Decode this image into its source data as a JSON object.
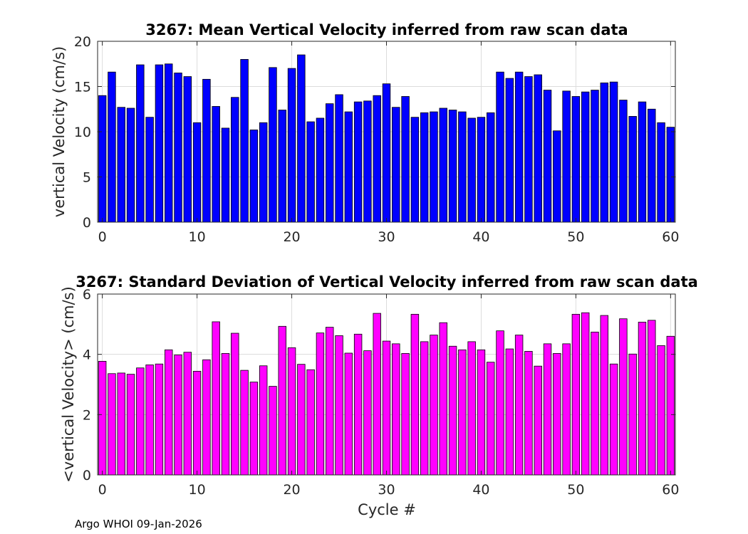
{
  "footer": "Argo WHOI 09-Jan-2026",
  "chart_data": [
    {
      "type": "bar",
      "title": "3267: Mean Vertical Velocity inferred from raw scan data",
      "xlabel": "",
      "ylabel": "vertical Velocity (cm/s)",
      "color": "#0000ff",
      "xlim": [
        -0.5,
        60.5
      ],
      "ylim": [
        0,
        20
      ],
      "xticks": [
        0,
        10,
        20,
        30,
        40,
        50,
        60
      ],
      "yticks": [
        0,
        5,
        10,
        15,
        20
      ],
      "grid": true,
      "x": [
        0,
        1,
        2,
        3,
        4,
        5,
        6,
        7,
        8,
        9,
        10,
        11,
        12,
        13,
        14,
        15,
        16,
        17,
        18,
        19,
        20,
        21,
        22,
        23,
        24,
        25,
        26,
        27,
        28,
        29,
        30,
        31,
        32,
        33,
        34,
        35,
        36,
        37,
        38,
        39,
        40,
        41,
        42,
        43,
        44,
        45,
        46,
        47,
        48,
        49,
        50,
        51,
        52,
        53,
        54,
        55,
        56,
        57,
        58,
        59,
        60
      ],
      "values": [
        14.0,
        16.6,
        12.7,
        12.6,
        17.4,
        11.6,
        17.4,
        17.5,
        16.5,
        16.1,
        11.0,
        15.8,
        12.8,
        10.4,
        13.8,
        18.0,
        10.2,
        11.0,
        17.1,
        12.4,
        17.0,
        18.5,
        11.1,
        11.5,
        13.1,
        14.1,
        12.2,
        13.3,
        13.4,
        14.0,
        15.3,
        12.7,
        13.9,
        11.6,
        12.1,
        12.2,
        12.6,
        12.4,
        12.2,
        11.5,
        11.6,
        12.1,
        16.6,
        15.9,
        16.6,
        16.1,
        16.3,
        14.6,
        10.1,
        14.5,
        13.9,
        14.4,
        14.6,
        15.4,
        15.5,
        13.5,
        11.7,
        13.3,
        12.5,
        11.0,
        10.5
      ]
    },
    {
      "type": "bar",
      "title": "3267: Standard Deviation of Vertical Velocity inferred from raw scan data",
      "xlabel": "Cycle #",
      "ylabel": "<vertical Velocity> (cm/s)",
      "color": "#ff00ff",
      "xlim": [
        -0.5,
        60.5
      ],
      "ylim": [
        0,
        6
      ],
      "xticks": [
        0,
        10,
        20,
        30,
        40,
        50,
        60
      ],
      "yticks": [
        0,
        2,
        4,
        6
      ],
      "grid": true,
      "x": [
        0,
        1,
        2,
        3,
        4,
        5,
        6,
        7,
        8,
        9,
        10,
        11,
        12,
        13,
        14,
        15,
        16,
        17,
        18,
        19,
        20,
        21,
        22,
        23,
        24,
        25,
        26,
        27,
        28,
        29,
        30,
        31,
        32,
        33,
        34,
        35,
        36,
        37,
        38,
        39,
        40,
        41,
        42,
        43,
        44,
        45,
        46,
        47,
        48,
        49,
        50,
        51,
        52,
        53,
        54,
        55,
        56,
        57,
        58,
        59,
        60
      ],
      "values": [
        3.77,
        3.36,
        3.38,
        3.34,
        3.55,
        3.65,
        3.68,
        4.15,
        3.98,
        4.07,
        3.44,
        3.82,
        5.08,
        4.03,
        4.7,
        3.47,
        3.08,
        3.62,
        2.94,
        4.93,
        4.22,
        3.67,
        3.49,
        4.71,
        4.9,
        4.62,
        4.04,
        4.67,
        4.12,
        5.36,
        4.44,
        4.35,
        4.03,
        5.33,
        4.42,
        4.64,
        5.05,
        4.27,
        4.15,
        4.42,
        4.15,
        3.74,
        4.78,
        4.18,
        4.64,
        4.1,
        3.61,
        4.35,
        4.03,
        4.35,
        5.33,
        5.38,
        4.74,
        5.29,
        3.68,
        5.18,
        4.01,
        5.07,
        5.13,
        4.29,
        4.6
      ]
    }
  ]
}
